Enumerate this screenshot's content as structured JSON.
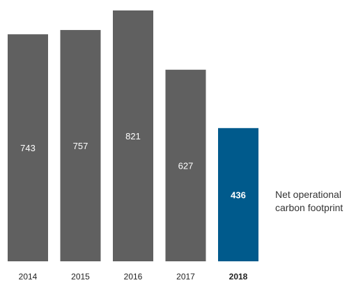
{
  "chart_data": {
    "type": "bar",
    "categories": [
      "2014",
      "2015",
      "2016",
      "2017",
      "2018"
    ],
    "values": [
      743,
      757,
      821,
      627,
      436
    ],
    "value_labels": [
      "743",
      "757",
      "821",
      "627",
      "436"
    ],
    "highlight_index": 4,
    "colors": {
      "default": "#606060",
      "highlight": "#005a8c"
    },
    "annotation": "Net operational carbon footprint",
    "ylim": [
      0,
      850
    ],
    "grid": false
  }
}
